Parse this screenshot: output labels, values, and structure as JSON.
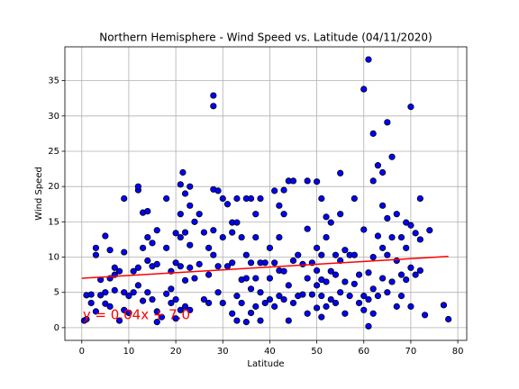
{
  "chart_data": {
    "type": "scatter",
    "title": "Northern Hemisphere - Wind Speed vs. Latitude (04/11/2020)",
    "xlabel": "Latitude",
    "ylabel": "Wind Speed",
    "xlim": [
      -3.6,
      81.9
    ],
    "ylim": [
      -1.8,
      39.8
    ],
    "xticks": [
      0,
      10,
      20,
      30,
      40,
      50,
      60,
      70,
      80
    ],
    "yticks": [
      0,
      5,
      10,
      15,
      20,
      25,
      30,
      35
    ],
    "grid": true,
    "color": "#0000ff",
    "edgecolor": "#000000",
    "x": [
      0.5,
      1,
      1,
      2,
      2,
      3,
      3,
      3,
      4,
      4,
      5,
      5,
      5,
      6,
      6,
      6,
      7,
      7,
      7,
      8,
      8,
      9,
      9,
      9,
      9,
      10,
      10,
      11,
      11,
      12,
      12,
      12,
      12,
      13,
      13,
      13,
      14,
      14,
      14,
      14,
      15,
      15,
      15,
      16,
      16,
      16,
      16,
      17,
      18,
      18,
      18,
      19,
      19,
      19,
      20,
      20,
      20,
      20,
      21,
      21,
      21,
      21,
      21,
      21.5,
      22,
      22,
      22,
      22,
      23,
      23,
      23,
      23,
      23,
      24,
      24,
      25,
      25,
      26,
      26,
      27,
      27,
      27,
      28,
      28,
      28,
      28,
      28,
      29,
      29,
      29,
      30,
      30,
      30,
      31,
      31,
      32,
      32,
      32,
      32,
      33,
      33,
      33,
      33,
      34,
      34,
      34,
      35,
      35,
      35,
      35,
      36,
      36,
      36,
      36,
      37,
      37,
      37,
      37,
      38,
      38,
      38,
      38,
      39,
      39,
      40,
      40,
      40,
      41,
      41,
      41,
      42,
      42,
      42,
      42,
      43,
      43,
      43,
      43,
      44,
      44,
      44,
      45,
      45,
      45,
      46,
      46,
      47,
      47,
      48,
      48,
      48,
      48,
      49,
      49,
      50,
      50,
      50,
      50,
      50,
      51,
      51,
      51,
      51,
      51,
      52,
      52,
      52,
      52,
      53,
      53,
      53,
      54,
      54,
      54,
      55,
      55,
      55,
      55,
      56,
      56,
      56,
      57,
      57,
      58,
      58,
      58,
      59,
      59,
      60,
      60,
      60,
      60,
      61,
      61,
      61,
      61,
      62,
      62,
      62,
      62,
      62,
      63,
      63,
      63,
      64,
      64,
      64,
      64,
      65,
      65,
      65,
      65,
      66,
      66,
      66,
      67,
      67,
      67,
      68,
      68,
      68,
      69,
      69,
      69,
      70,
      70,
      70,
      70,
      71,
      71,
      72,
      72,
      72,
      73,
      74,
      77,
      78
    ],
    "values": [
      1.0,
      4.6,
      1.2,
      4.7,
      3.5,
      11.3,
      10.3,
      2.3,
      6.8,
      4.6,
      13.0,
      5.0,
      3.4,
      11.0,
      7.0,
      3.0,
      8.5,
      7.5,
      5.3,
      8.0,
      1.0,
      18.3,
      10.7,
      5.0,
      2.5,
      4.5,
      2.1,
      8.0,
      5.0,
      19.5,
      20.0,
      8.5,
      6.0,
      16.3,
      11.3,
      3.8,
      16.5,
      12.8,
      9.5,
      5.0,
      12.0,
      8.7,
      4.0,
      13.8,
      9.0,
      2.3,
      0.8,
      1.5,
      11.3,
      4.8,
      18.3,
      8.0,
      5.5,
      3.5,
      13.4,
      9.2,
      4.0,
      1.3,
      20.3,
      16.1,
      12.8,
      8.7,
      2.5,
      22.0,
      19.0,
      13.5,
      6.7,
      3.0,
      20.0,
      17.3,
      11.7,
      8.5,
      2.5,
      15.0,
      7.0,
      16.1,
      9.0,
      4.0,
      13.5,
      11.3,
      7.5,
      3.5,
      32.9,
      31.4,
      19.6,
      13.8,
      10.3,
      19.4,
      8.7,
      5.0,
      18.3,
      12.8,
      3.5,
      17.5,
      8.7,
      14.9,
      13.5,
      9.2,
      2.0,
      18.3,
      14.9,
      4.5,
      1.0,
      12.8,
      6.8,
      3.5,
      18.3,
      10.3,
      7.0,
      0.8,
      18.3,
      9.2,
      5.5,
      2.1,
      16.1,
      12.8,
      7.0,
      3.0,
      18.3,
      9.2,
      5.0,
      1.0,
      9.2,
      3.5,
      11.3,
      7.0,
      4.0,
      19.4,
      9.2,
      3.0,
      17.3,
      12.8,
      8.1,
      4.5,
      19.5,
      16.1,
      8.0,
      4.0,
      20.8,
      6.0,
      1.0,
      20.8,
      9.5,
      3.5,
      10.3,
      4.5,
      9.0,
      4.7,
      20.8,
      14.0,
      7.0,
      2.0,
      9.2,
      4.7,
      20.7,
      11.3,
      8.1,
      6.0,
      2.8,
      18.3,
      10.3,
      6.8,
      4.5,
      1.5,
      15.7,
      12.8,
      6.5,
      3.0,
      14.9,
      8.0,
      4.0,
      10.3,
      7.5,
      3.5,
      21.9,
      16.1,
      9.5,
      5.0,
      11.0,
      6.5,
      2.0,
      10.3,
      4.5,
      18.3,
      10.3,
      6.2,
      7.5,
      3.5,
      33.8,
      13.9,
      4.5,
      2.5,
      38.0,
      7.8,
      4.0,
      0.2,
      27.5,
      20.8,
      10.0,
      5.5,
      2.0,
      23.0,
      13.0,
      4.5,
      22.0,
      17.3,
      11.3,
      7.0,
      29.1,
      15.5,
      10.3,
      5.0,
      24.2,
      12.8,
      6.5,
      16.1,
      9.5,
      3.0,
      12.8,
      7.5,
      4.5,
      14.9,
      11.3,
      6.8,
      31.3,
      14.5,
      8.5,
      3.0,
      13.4,
      7.5,
      18.3,
      12.5,
      8.1,
      1.8,
      13.8,
      3.2,
      1.2
    ],
    "fit": {
      "x": [
        0,
        78
      ],
      "values": [
        7.0,
        10.1
      ],
      "color": "#ff0000"
    },
    "annotation": {
      "text": "y = 0.04x + 7.0",
      "x": 0.2,
      "y": 0.9,
      "color": "#ff0000"
    }
  }
}
